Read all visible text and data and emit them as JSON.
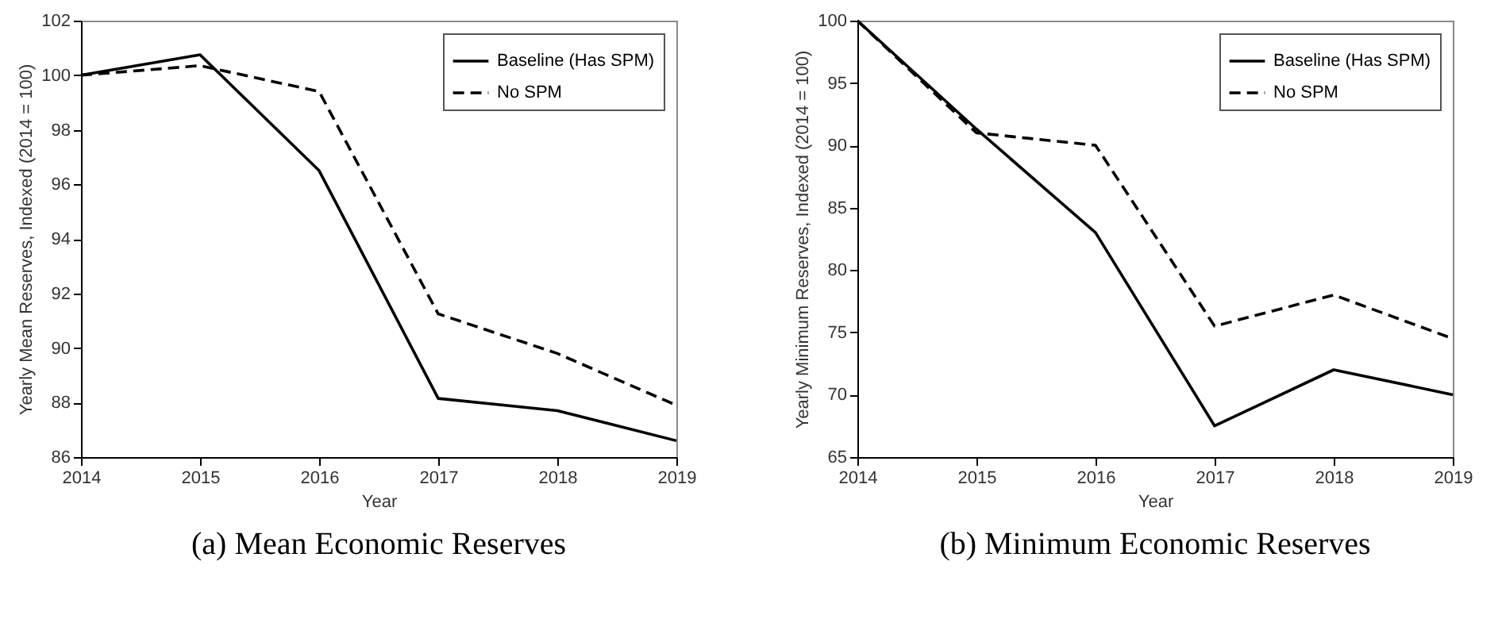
{
  "chart_data": [
    {
      "type": "line",
      "title": "(a) Mean Economic Reserves",
      "xlabel": "Year",
      "ylabel": "Yearly Mean Reserves, Indexed (2014 = 100)",
      "x": [
        2014,
        2015,
        2016,
        2017,
        2018,
        2019
      ],
      "series": [
        {
          "name": "Baseline (Has SPM)",
          "color": "#000000",
          "line_style": "solid",
          "values": [
            100,
            100.75,
            96.5,
            88.15,
            87.7,
            86.6
          ]
        },
        {
          "name": "No SPM",
          "color": "#000000",
          "line_style": "dashed",
          "values": [
            100,
            100.35,
            99.4,
            91.25,
            89.8,
            87.9
          ]
        }
      ],
      "xlim": [
        2014,
        2019
      ],
      "xticks": [
        2014,
        2015,
        2016,
        2017,
        2018,
        2019
      ],
      "ylim": [
        86,
        102
      ],
      "yticks": [
        86,
        88,
        90,
        92,
        94,
        96,
        98,
        100,
        102
      ],
      "grid": false,
      "legend": "top right",
      "marker": "none"
    },
    {
      "type": "line",
      "title": "(b) Minimum Economic Reserves",
      "xlabel": "Year",
      "ylabel": "Yearly Minimum Reserves, Indexed (2014 = 100)",
      "x": [
        2014,
        2015,
        2016,
        2017,
        2018,
        2019
      ],
      "series": [
        {
          "name": "Baseline (Has SPM)",
          "color": "#000000",
          "line_style": "solid",
          "values": [
            100,
            91.3,
            83,
            67.5,
            72,
            70
          ]
        },
        {
          "name": "No SPM",
          "color": "#000000",
          "line_style": "dashed",
          "values": [
            100,
            91,
            90,
            75.5,
            78,
            74.5
          ]
        }
      ],
      "xlim": [
        2014,
        2019
      ],
      "xticks": [
        2014,
        2015,
        2016,
        2017,
        2018,
        2019
      ],
      "ylim": [
        65,
        100
      ],
      "yticks": [
        65,
        70,
        75,
        80,
        85,
        90,
        95,
        100
      ],
      "grid": false,
      "legend": "top right",
      "marker": "none"
    }
  ]
}
